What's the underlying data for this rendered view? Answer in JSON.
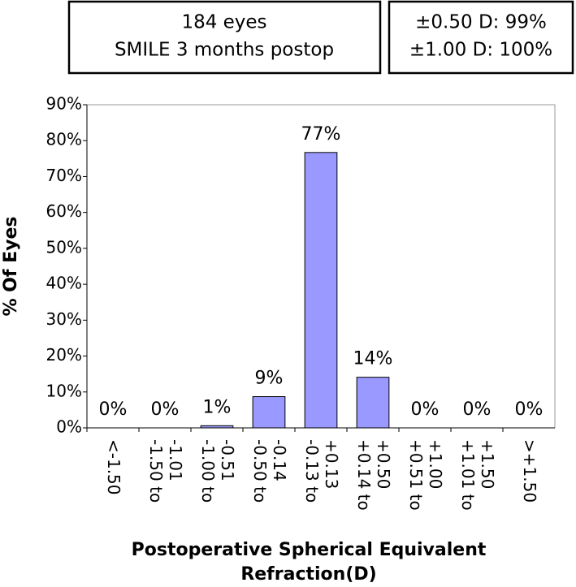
{
  "chart_data": {
    "type": "bar",
    "annotations": [
      {
        "lines": [
          "184 eyes",
          "SMILE 3 months postop"
        ]
      },
      {
        "lines": [
          "±0.50 D: 99%",
          "±1.00 D: 100%"
        ]
      }
    ],
    "y_label": "% Of Eyes",
    "x_label": [
      "Postoperative Spherical Equivalent",
      "Refraction(D)"
    ],
    "categories": [
      "<-1.50",
      "-1.50 to\n-1.01",
      "-1.00 to\n-0.51",
      "-0.50 to\n-0.14",
      "-0.13 to\n+0.13",
      "+0.14 to\n+0.50",
      "+0.51 to\n+1.00",
      "+1.01 to\n+1.50",
      ">+1.50"
    ],
    "values": [
      0,
      0,
      0.6,
      8.7,
      76.7,
      14.1,
      0,
      0,
      0
    ],
    "value_labels": [
      "0%",
      "0%",
      "1%",
      "9%",
      "77%",
      "14%",
      "0%",
      "0%",
      "0%"
    ],
    "color": "#9999ff",
    "ylim": [
      0,
      90
    ],
    "yticks": [
      {
        "value": 0,
        "label": "0%"
      },
      {
        "value": 10,
        "label": "10%"
      },
      {
        "value": 20,
        "label": "20%"
      },
      {
        "value": 30,
        "label": "30%"
      },
      {
        "value": 40,
        "label": "40%"
      },
      {
        "value": 50,
        "label": "50%"
      },
      {
        "value": 60,
        "label": "60%"
      },
      {
        "value": 70,
        "label": "70%"
      },
      {
        "value": 80,
        "label": "80%"
      },
      {
        "value": 90,
        "label": "90%"
      }
    ]
  }
}
